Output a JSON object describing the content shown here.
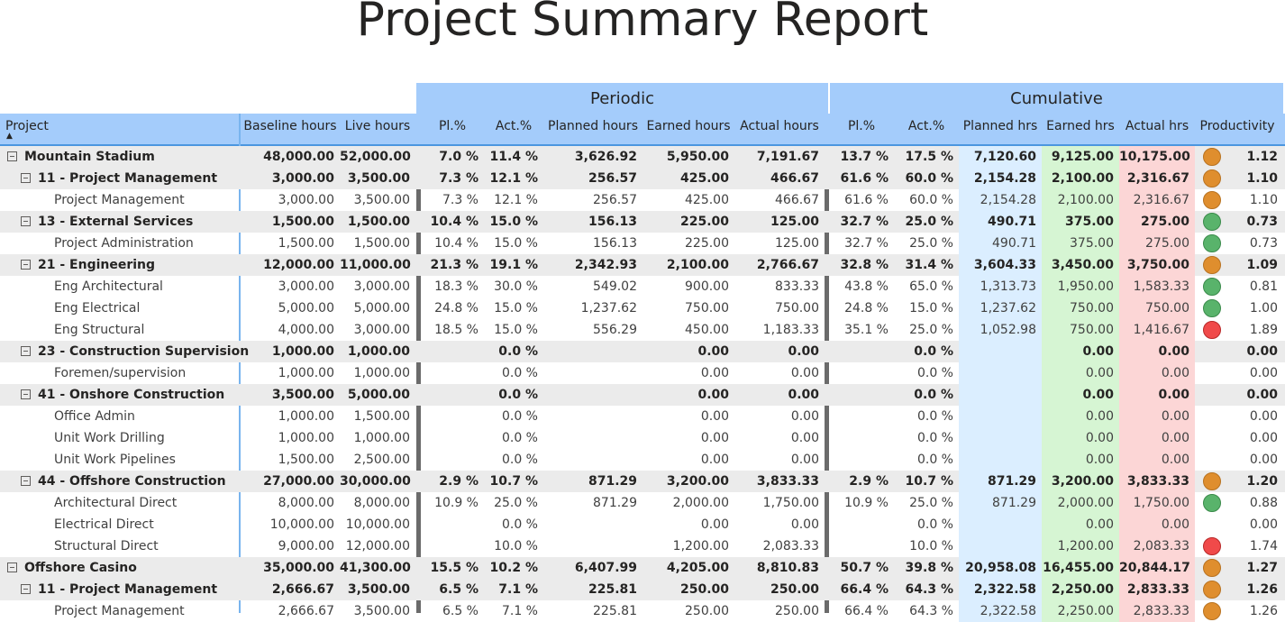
{
  "report": {
    "title": "Project Summary Report",
    "group_periodic": "Periodic",
    "group_cumulative": "Cumulative",
    "columns": [
      "Project",
      "Baseline hours",
      "Live hours",
      "Pl.%",
      "Act.%",
      "Planned hours",
      "Earned hours",
      "Actual hours",
      "Pl.%",
      "Act.%",
      "Planned hrs",
      "Earned hrs",
      "Actual hrs",
      "Productivity"
    ],
    "sort_indicator": "▲"
  },
  "colors": {
    "header_bg": "#a4ccfb",
    "planned_bg": "#dbeeff",
    "earned_bg": "#d6f5d3",
    "actual_bg": "#fcd6d6",
    "status_orange": "#df8e2e",
    "status_green": "#59b36b",
    "status_red": "#f04a4a"
  },
  "rows": [
    {
      "level": 0,
      "bold": true,
      "expander": true,
      "name": "Mountain Stadium",
      "baseline": "48,000.00",
      "live": "52,000.00",
      "p_pl": "7.0 %",
      "p_act": "11.4 %",
      "p_planned": "3,626.92",
      "p_earned": "5,950.00",
      "p_actual": "7,191.67",
      "c_pl": "13.7 %",
      "c_act": "17.5 %",
      "c_planned": "7,120.60",
      "c_earned": "9,125.00",
      "c_actual": "10,175.00",
      "status": "orange",
      "prod": "1.12"
    },
    {
      "level": 1,
      "bold": true,
      "expander": true,
      "name": "11 - Project Management",
      "baseline": "3,000.00",
      "live": "3,500.00",
      "p_pl": "7.3 %",
      "p_act": "12.1 %",
      "p_planned": "256.57",
      "p_earned": "425.00",
      "p_actual": "466.67",
      "c_pl": "61.6 %",
      "c_act": "60.0 %",
      "c_planned": "2,154.28",
      "c_earned": "2,100.00",
      "c_actual": "2,316.67",
      "status": "orange",
      "prod": "1.10"
    },
    {
      "level": 2,
      "bold": false,
      "expander": false,
      "name": "Project Management",
      "baseline": "3,000.00",
      "live": "3,500.00",
      "p_pl": "7.3 %",
      "p_act": "12.1 %",
      "p_planned": "256.57",
      "p_earned": "425.00",
      "p_actual": "466.67",
      "c_pl": "61.6 %",
      "c_act": "60.0 %",
      "c_planned": "2,154.28",
      "c_earned": "2,100.00",
      "c_actual": "2,316.67",
      "status": "orange",
      "prod": "1.10"
    },
    {
      "level": 1,
      "bold": true,
      "expander": true,
      "name": "13 - External Services",
      "baseline": "1,500.00",
      "live": "1,500.00",
      "p_pl": "10.4 %",
      "p_act": "15.0 %",
      "p_planned": "156.13",
      "p_earned": "225.00",
      "p_actual": "125.00",
      "c_pl": "32.7 %",
      "c_act": "25.0 %",
      "c_planned": "490.71",
      "c_earned": "375.00",
      "c_actual": "275.00",
      "status": "green",
      "prod": "0.73"
    },
    {
      "level": 2,
      "bold": false,
      "expander": false,
      "name": "Project Administration",
      "baseline": "1,500.00",
      "live": "1,500.00",
      "p_pl": "10.4 %",
      "p_act": "15.0 %",
      "p_planned": "156.13",
      "p_earned": "225.00",
      "p_actual": "125.00",
      "c_pl": "32.7 %",
      "c_act": "25.0 %",
      "c_planned": "490.71",
      "c_earned": "375.00",
      "c_actual": "275.00",
      "status": "green",
      "prod": "0.73"
    },
    {
      "level": 1,
      "bold": true,
      "expander": true,
      "name": "21 - Engineering",
      "baseline": "12,000.00",
      "live": "11,000.00",
      "p_pl": "21.3 %",
      "p_act": "19.1 %",
      "p_planned": "2,342.93",
      "p_earned": "2,100.00",
      "p_actual": "2,766.67",
      "c_pl": "32.8 %",
      "c_act": "31.4 %",
      "c_planned": "3,604.33",
      "c_earned": "3,450.00",
      "c_actual": "3,750.00",
      "status": "orange",
      "prod": "1.09"
    },
    {
      "level": 2,
      "bold": false,
      "expander": false,
      "name": "Eng Architectural",
      "baseline": "3,000.00",
      "live": "3,000.00",
      "p_pl": "18.3 %",
      "p_act": "30.0 %",
      "p_planned": "549.02",
      "p_earned": "900.00",
      "p_actual": "833.33",
      "c_pl": "43.8 %",
      "c_act": "65.0 %",
      "c_planned": "1,313.73",
      "c_earned": "1,950.00",
      "c_actual": "1,583.33",
      "status": "green",
      "prod": "0.81"
    },
    {
      "level": 2,
      "bold": false,
      "expander": false,
      "name": "Eng Electrical",
      "baseline": "5,000.00",
      "live": "5,000.00",
      "p_pl": "24.8 %",
      "p_act": "15.0 %",
      "p_planned": "1,237.62",
      "p_earned": "750.00",
      "p_actual": "750.00",
      "c_pl": "24.8 %",
      "c_act": "15.0 %",
      "c_planned": "1,237.62",
      "c_earned": "750.00",
      "c_actual": "750.00",
      "status": "green",
      "prod": "1.00"
    },
    {
      "level": 2,
      "bold": false,
      "expander": false,
      "name": "Eng Structural",
      "baseline": "4,000.00",
      "live": "3,000.00",
      "p_pl": "18.5 %",
      "p_act": "15.0 %",
      "p_planned": "556.29",
      "p_earned": "450.00",
      "p_actual": "1,183.33",
      "c_pl": "35.1 %",
      "c_act": "25.0 %",
      "c_planned": "1,052.98",
      "c_earned": "750.00",
      "c_actual": "1,416.67",
      "status": "red",
      "prod": "1.89"
    },
    {
      "level": 1,
      "bold": true,
      "expander": true,
      "name": "23 - Construction Supervision",
      "baseline": "1,000.00",
      "live": "1,000.00",
      "p_pl": "",
      "p_act": "0.0 %",
      "p_planned": "",
      "p_earned": "0.00",
      "p_actual": "0.00",
      "c_pl": "",
      "c_act": "0.0 %",
      "c_planned": "",
      "c_earned": "0.00",
      "c_actual": "0.00",
      "status": "",
      "prod": "0.00"
    },
    {
      "level": 2,
      "bold": false,
      "expander": false,
      "name": "Foremen/supervision",
      "baseline": "1,000.00",
      "live": "1,000.00",
      "p_pl": "",
      "p_act": "0.0 %",
      "p_planned": "",
      "p_earned": "0.00",
      "p_actual": "0.00",
      "c_pl": "",
      "c_act": "0.0 %",
      "c_planned": "",
      "c_earned": "0.00",
      "c_actual": "0.00",
      "status": "",
      "prod": "0.00"
    },
    {
      "level": 1,
      "bold": true,
      "expander": true,
      "name": "41 - Onshore Construction",
      "baseline": "3,500.00",
      "live": "5,000.00",
      "p_pl": "",
      "p_act": "0.0 %",
      "p_planned": "",
      "p_earned": "0.00",
      "p_actual": "0.00",
      "c_pl": "",
      "c_act": "0.0 %",
      "c_planned": "",
      "c_earned": "0.00",
      "c_actual": "0.00",
      "status": "",
      "prod": "0.00"
    },
    {
      "level": 2,
      "bold": false,
      "expander": false,
      "name": "Office Admin",
      "baseline": "1,000.00",
      "live": "1,500.00",
      "p_pl": "",
      "p_act": "0.0 %",
      "p_planned": "",
      "p_earned": "0.00",
      "p_actual": "0.00",
      "c_pl": "",
      "c_act": "0.0 %",
      "c_planned": "",
      "c_earned": "0.00",
      "c_actual": "0.00",
      "status": "",
      "prod": "0.00"
    },
    {
      "level": 2,
      "bold": false,
      "expander": false,
      "name": "Unit Work Drilling",
      "baseline": "1,000.00",
      "live": "1,000.00",
      "p_pl": "",
      "p_act": "0.0 %",
      "p_planned": "",
      "p_earned": "0.00",
      "p_actual": "0.00",
      "c_pl": "",
      "c_act": "0.0 %",
      "c_planned": "",
      "c_earned": "0.00",
      "c_actual": "0.00",
      "status": "",
      "prod": "0.00"
    },
    {
      "level": 2,
      "bold": false,
      "expander": false,
      "name": "Unit Work Pipelines",
      "baseline": "1,500.00",
      "live": "2,500.00",
      "p_pl": "",
      "p_act": "0.0 %",
      "p_planned": "",
      "p_earned": "0.00",
      "p_actual": "0.00",
      "c_pl": "",
      "c_act": "0.0 %",
      "c_planned": "",
      "c_earned": "0.00",
      "c_actual": "0.00",
      "status": "",
      "prod": "0.00"
    },
    {
      "level": 1,
      "bold": true,
      "expander": true,
      "name": "44 - Offshore Construction",
      "baseline": "27,000.00",
      "live": "30,000.00",
      "p_pl": "2.9 %",
      "p_act": "10.7 %",
      "p_planned": "871.29",
      "p_earned": "3,200.00",
      "p_actual": "3,833.33",
      "c_pl": "2.9 %",
      "c_act": "10.7 %",
      "c_planned": "871.29",
      "c_earned": "3,200.00",
      "c_actual": "3,833.33",
      "status": "orange",
      "prod": "1.20"
    },
    {
      "level": 2,
      "bold": false,
      "expander": false,
      "name": "Architectural Direct",
      "baseline": "8,000.00",
      "live": "8,000.00",
      "p_pl": "10.9 %",
      "p_act": "25.0 %",
      "p_planned": "871.29",
      "p_earned": "2,000.00",
      "p_actual": "1,750.00",
      "c_pl": "10.9 %",
      "c_act": "25.0 %",
      "c_planned": "871.29",
      "c_earned": "2,000.00",
      "c_actual": "1,750.00",
      "status": "green",
      "prod": "0.88"
    },
    {
      "level": 2,
      "bold": false,
      "expander": false,
      "name": "Electrical Direct",
      "baseline": "10,000.00",
      "live": "10,000.00",
      "p_pl": "",
      "p_act": "0.0 %",
      "p_planned": "",
      "p_earned": "0.00",
      "p_actual": "0.00",
      "c_pl": "",
      "c_act": "0.0 %",
      "c_planned": "",
      "c_earned": "0.00",
      "c_actual": "0.00",
      "status": "",
      "prod": "0.00"
    },
    {
      "level": 2,
      "bold": false,
      "expander": false,
      "name": "Structural Direct",
      "baseline": "9,000.00",
      "live": "12,000.00",
      "p_pl": "",
      "p_act": "10.0 %",
      "p_planned": "",
      "p_earned": "1,200.00",
      "p_actual": "2,083.33",
      "c_pl": "",
      "c_act": "10.0 %",
      "c_planned": "",
      "c_earned": "1,200.00",
      "c_actual": "2,083.33",
      "status": "red",
      "prod": "1.74"
    },
    {
      "level": 0,
      "bold": true,
      "expander": true,
      "name": "Offshore Casino",
      "baseline": "35,000.00",
      "live": "41,300.00",
      "p_pl": "15.5 %",
      "p_act": "10.2 %",
      "p_planned": "6,407.99",
      "p_earned": "4,205.00",
      "p_actual": "8,810.83",
      "c_pl": "50.7 %",
      "c_act": "39.8 %",
      "c_planned": "20,958.08",
      "c_earned": "16,455.00",
      "c_actual": "20,844.17",
      "status": "orange",
      "prod": "1.27"
    },
    {
      "level": 1,
      "bold": true,
      "expander": true,
      "name": "11 - Project Management",
      "baseline": "2,666.67",
      "live": "3,500.00",
      "p_pl": "6.5 %",
      "p_act": "7.1 %",
      "p_planned": "225.81",
      "p_earned": "250.00",
      "p_actual": "250.00",
      "c_pl": "66.4 %",
      "c_act": "64.3 %",
      "c_planned": "2,322.58",
      "c_earned": "2,250.00",
      "c_actual": "2,833.33",
      "status": "orange",
      "prod": "1.26"
    },
    {
      "level": 2,
      "bold": false,
      "expander": false,
      "name": "Project Management",
      "baseline": "2,666.67",
      "live": "3,500.00",
      "p_pl": "6.5 %",
      "p_act": "7.1 %",
      "p_planned": "225.81",
      "p_earned": "250.00",
      "p_actual": "250.00",
      "c_pl": "66.4 %",
      "c_act": "64.3 %",
      "c_planned": "2,322.58",
      "c_earned": "2,250.00",
      "c_actual": "2,833.33",
      "status": "orange",
      "prod": "1.26"
    }
  ]
}
